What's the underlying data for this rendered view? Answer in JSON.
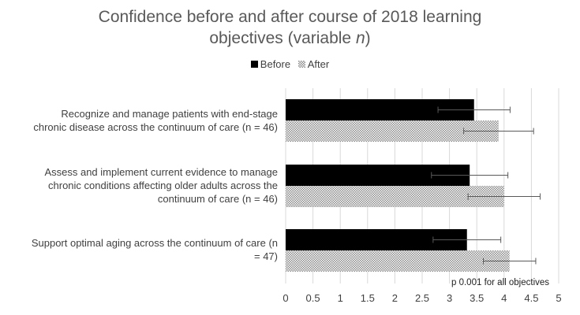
{
  "title": {
    "line1": "Confidence before and after course of 2018 learning",
    "line2_prefix": "objectives (variable ",
    "line2_italic": "n",
    "line2_suffix": ")"
  },
  "legend": {
    "before": "Before",
    "after": "After"
  },
  "colors": {
    "before": "#000000",
    "after_pattern": "#9a9a9a",
    "grid": "#d9d9d9",
    "error_bar": "#595959"
  },
  "note": "p  0.001 for all objectives",
  "chart_data": {
    "type": "bar",
    "orientation": "horizontal",
    "categories": [
      "Recognize and manage patients with end-stage chronic disease across the continuum of care (n = 46)",
      "Assess and implement current evidence to manage chronic conditions affecting older adults across the continuum of care (n = 46)",
      "Support optimal aging across the continuum of care (n = 47)"
    ],
    "category_lines": [
      [
        "Recognize and manage patients with end-stage",
        "chronic disease across the continuum of care (n = 46)"
      ],
      [
        "Assess and implement current evidence to manage",
        "chronic conditions affecting older adults across the",
        "continuum of care (n = 46)"
      ],
      [
        "Support optimal aging across the continuum of care (n",
        "= 47)"
      ]
    ],
    "series": [
      {
        "name": "Before",
        "values": [
          3.45,
          3.37,
          3.32
        ],
        "error": [
          0.66,
          0.7,
          0.62
        ]
      },
      {
        "name": "After",
        "values": [
          3.9,
          4.0,
          4.1
        ],
        "error": [
          0.64,
          0.66,
          0.48
        ]
      }
    ],
    "xlim": [
      0,
      5
    ],
    "xticks": [
      "0",
      "0.5",
      "1",
      "1.5",
      "2",
      "2.5",
      "3",
      "3.5",
      "4",
      "4.5",
      "5"
    ],
    "grid": true,
    "legend_position": "top-center",
    "xlabel": "",
    "ylabel": ""
  }
}
